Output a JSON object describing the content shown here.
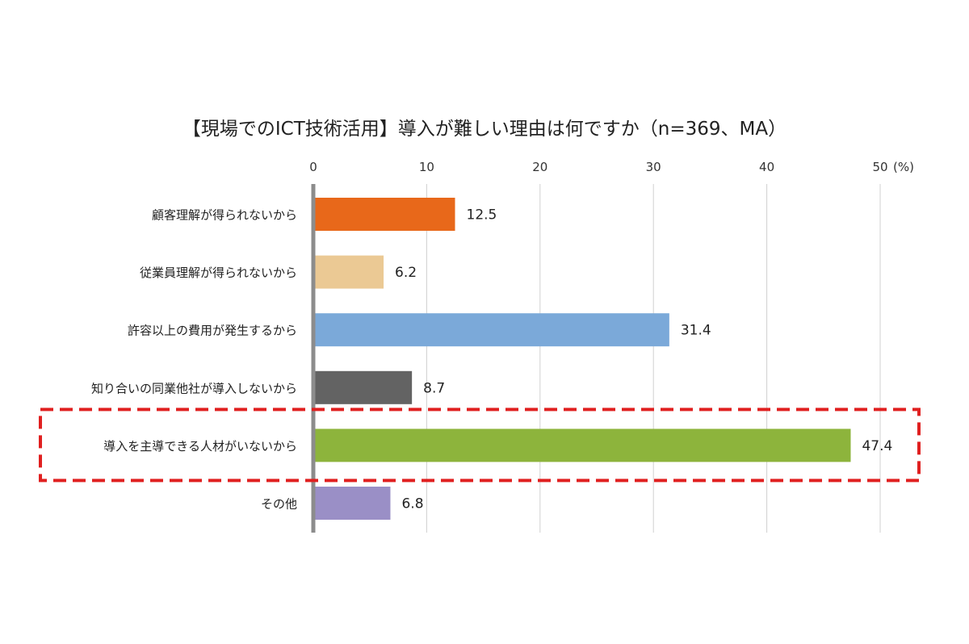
{
  "chart_data": {
    "type": "bar",
    "orientation": "horizontal",
    "title": "【現場でのICT技術活用】導入が難しい理由は何ですか（n=369、MA）",
    "unit_label": "(%)",
    "categories": [
      "顧客理解が得られないから",
      "従業員理解が得られないから",
      "許容以上の費用が発生するから",
      "知り合いの同業他社が導入しないから",
      "導入を主導できる人材がいないから",
      "その他"
    ],
    "values": [
      12.5,
      6.2,
      31.4,
      8.7,
      47.4,
      6.8
    ],
    "value_labels": [
      "12.5",
      "6.2",
      "31.4",
      "8.7",
      "47.4",
      "6.8"
    ],
    "colors": [
      "#E8681A",
      "#EBC994",
      "#7BA9D9",
      "#636363",
      "#8DB43C",
      "#9A8FC6"
    ],
    "xlim": [
      0,
      50
    ],
    "x_ticks": [
      0,
      10,
      20,
      30,
      40,
      50
    ],
    "x_tick_labels": [
      "0",
      "10",
      "20",
      "30",
      "40",
      "50"
    ],
    "highlight_index": 4,
    "highlight_color": "#E02020",
    "grid": true,
    "axis_position": "top"
  }
}
